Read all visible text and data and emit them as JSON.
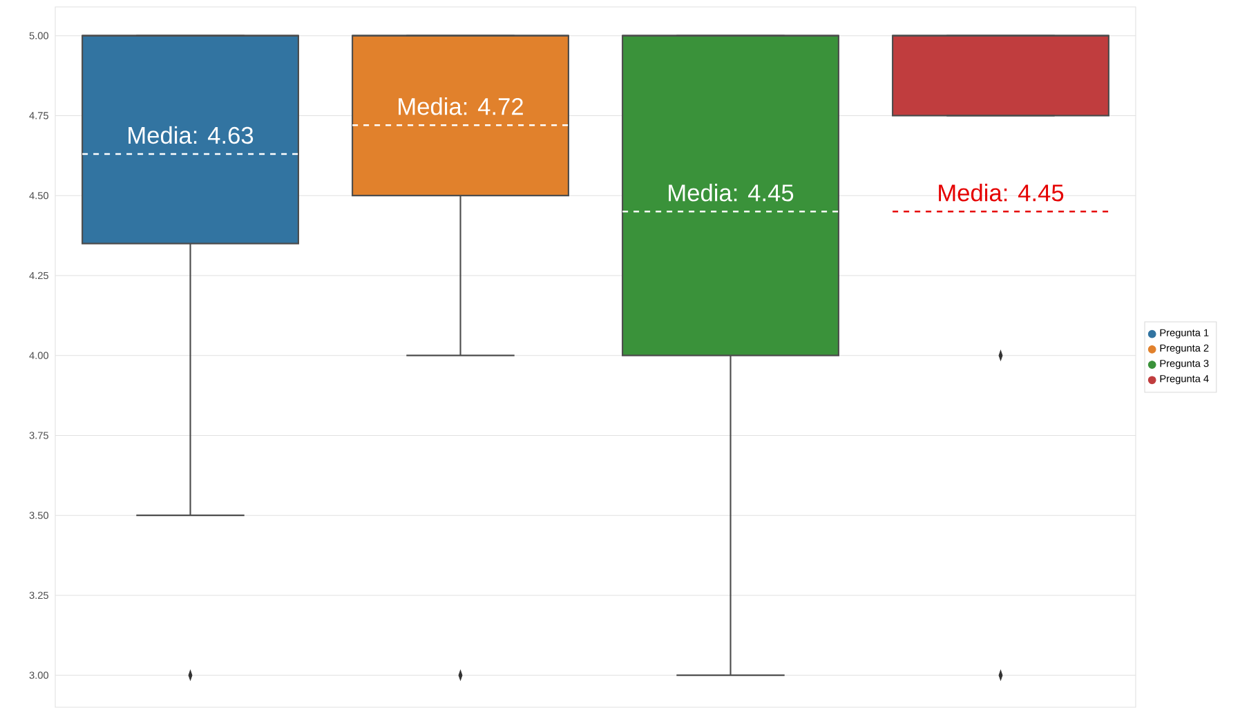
{
  "chart_data": {
    "type": "box",
    "categories": [
      null,
      null,
      null,
      null
    ],
    "series": [
      {
        "name": "Pregunta 1",
        "color": "#3274a1",
        "boxes": [
          {
            "low": 3.5,
            "q1": 4.35,
            "median": 5,
            "q3": 5,
            "high": 5,
            "mean": 4.63,
            "outliers": [
              3
            ]
          },
          null,
          null,
          null
        ]
      },
      {
        "name": "Pregunta 2",
        "color": "#e1812c",
        "boxes": [
          null,
          {
            "low": 4,
            "q1": 4.5,
            "median": 5,
            "q3": 5,
            "high": 5,
            "mean": 4.72,
            "outliers": [
              3
            ]
          },
          null,
          null
        ]
      },
      {
        "name": "Pregunta 3",
        "color": "#3a923a",
        "boxes": [
          null,
          null,
          {
            "low": 3,
            "q1": 4,
            "median": 5,
            "q3": 5,
            "high": 5,
            "mean": 4.45
          },
          null
        ]
      },
      {
        "name": "Pregunta 4",
        "color": "#c03d3e",
        "boxes": [
          null,
          null,
          null,
          {
            "low": 4.75,
            "q1": 4.75,
            "median": 5,
            "q3": 5,
            "high": 5,
            "mean": 4.45,
            "outliers": [
              4,
              3
            ]
          }
        ]
      }
    ],
    "annotations": [
      "Media: 4.63",
      "Media: 4.72",
      "Media: 4.45",
      "Media: 4.45"
    ],
    "ylim": [
      2.9,
      5.09
    ],
    "yticks": [
      {
        "value": 3,
        "label": "3.00"
      },
      {
        "value": 3.25,
        "label": "3.25"
      },
      {
        "value": 3.5,
        "label": "3.50"
      },
      {
        "value": 3.75,
        "label": "3.75"
      },
      {
        "value": 4,
        "label": "4.00"
      },
      {
        "value": 4.25,
        "label": "4.25"
      },
      {
        "value": 4.5,
        "label": "4.50"
      },
      {
        "value": 4.75,
        "label": "4.75"
      },
      {
        "value": 5,
        "label": "5.00"
      }
    ],
    "grid": "y",
    "legend": "right",
    "marker": "diamond"
  }
}
